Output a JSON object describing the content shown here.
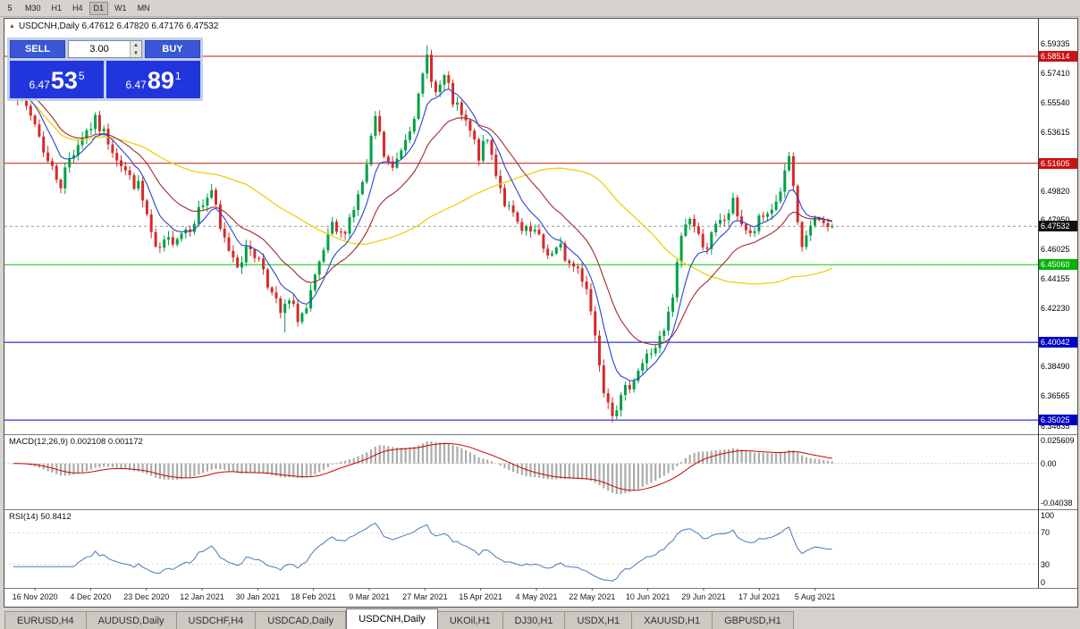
{
  "toolbar": {
    "timeframes": [
      "5",
      "M30",
      "H1",
      "H4",
      "D1",
      "W1",
      "MN"
    ],
    "active_timeframe": "D1"
  },
  "chart": {
    "symbol_line": "USDCNH,Daily 6.47612 6.47820 6.47176 6.47532"
  },
  "trade_panel": {
    "sell_label": "SELL",
    "buy_label": "BUY",
    "volume": "3.00",
    "sell_price": {
      "prefix": "6.47",
      "big": "53",
      "sup": "5"
    },
    "buy_price": {
      "prefix": "6.47",
      "big": "89",
      "sup": "1"
    }
  },
  "price_scale": {
    "plain": [
      "6.59335",
      "6.57410",
      "6.55540",
      "6.53615",
      "6.49820",
      "6.47950",
      "6.46025",
      "6.44155",
      "6.42230",
      "6.38490",
      "6.36565",
      "6.34635"
    ],
    "badges": [
      {
        "value": "6.58514",
        "color": "#cc1111"
      },
      {
        "value": "6.51605",
        "color": "#cc1111"
      },
      {
        "value": "6.47532",
        "color": "#111111"
      },
      {
        "value": "6.45060",
        "color": "#00b400"
      },
      {
        "value": "6.40042",
        "color": "#0000c8"
      },
      {
        "value": "6.35025",
        "color": "#0000c8"
      }
    ]
  },
  "levels": [
    {
      "price": 6.58514,
      "color": "#cc1111",
      "dash": false
    },
    {
      "price": 6.51605,
      "color": "#cc1111",
      "dash": false
    },
    {
      "price": 6.47532,
      "color": "#999999",
      "dash": true
    },
    {
      "price": 6.4506,
      "color": "#00cc00",
      "dash": false
    },
    {
      "price": 6.40042,
      "color": "#0000cc",
      "dash": false
    },
    {
      "price": 6.35025,
      "color": "#0000cc",
      "dash": false
    }
  ],
  "indicators": {
    "macd": {
      "label": "MACD(12,26,9) 0.002108 0.001172",
      "scale": [
        "0.025609",
        "0.00",
        "-0.04038"
      ]
    },
    "rsi": {
      "label": "RSI(14) 50.8412",
      "scale": [
        "100",
        "70",
        "30",
        "0"
      ]
    }
  },
  "dates": [
    "16 Nov 2020",
    "4 Dec 2020",
    "23 Dec 2020",
    "12 Jan 2021",
    "30 Jan 2021",
    "18 Feb 2021",
    "9 Mar 2021",
    "27 Mar 2021",
    "15 Apr 2021",
    "4 May 2021",
    "22 May 2021",
    "10 Jun 2021",
    "29 Jun 2021",
    "17 Jul 2021",
    "5 Aug 2021"
  ],
  "tabs": {
    "items": [
      "EURUSD,H4",
      "AUDUSD,Daily",
      "USDCHF,H4",
      "USDCAD,Daily",
      "USDCNH,Daily",
      "UKOil,H1",
      "DJ30,H1",
      "USDX,H1",
      "XAUUSD,H1",
      "GBPUSD,H1"
    ],
    "active": "USDCNH,Daily"
  },
  "colors": {
    "bull": "#00a046",
    "bear": "#d42a2a",
    "ma_fast": "#2746c9",
    "ma_mid": "#9e2b2b",
    "ma_slow": "#efcf0e",
    "rsi": "#4878b8",
    "macd_signal": "#d00000",
    "macd_hist": "#ababab"
  },
  "chart_data": {
    "type": "candlestick",
    "symbol": "USDCNH",
    "timeframe": "Daily",
    "last_close": 6.47532,
    "keyframes": [
      [
        0,
        6.567
      ],
      [
        2,
        6.556
      ],
      [
        5,
        6.542
      ],
      [
        8,
        6.517
      ],
      [
        11,
        6.503
      ],
      [
        13,
        6.519
      ],
      [
        16,
        6.534
      ],
      [
        19,
        6.543
      ],
      [
        22,
        6.531
      ],
      [
        25,
        6.516
      ],
      [
        27,
        6.506
      ],
      [
        29,
        6.501
      ],
      [
        31,
        6.482
      ],
      [
        33,
        6.458
      ],
      [
        35,
        6.463
      ],
      [
        38,
        6.47
      ],
      [
        41,
        6.476
      ],
      [
        44,
        6.49
      ],
      [
        46,
        6.499
      ],
      [
        48,
        6.472
      ],
      [
        50,
        6.461
      ],
      [
        52,
        6.452
      ],
      [
        55,
        6.462
      ],
      [
        58,
        6.449
      ],
      [
        60,
        6.431
      ],
      [
        62,
        6.419
      ],
      [
        64,
        6.426
      ],
      [
        66,
        6.417
      ],
      [
        68,
        6.421
      ],
      [
        70,
        6.44
      ],
      [
        72,
        6.459
      ],
      [
        74,
        6.474
      ],
      [
        76,
        6.469
      ],
      [
        78,
        6.481
      ],
      [
        80,
        6.494
      ],
      [
        82,
        6.513
      ],
      [
        84,
        6.546
      ],
      [
        86,
        6.521
      ],
      [
        88,
        6.511
      ],
      [
        90,
        6.526
      ],
      [
        92,
        6.541
      ],
      [
        94,
        6.557
      ],
      [
        96,
        6.585
      ],
      [
        98,
        6.561
      ],
      [
        100,
        6.571
      ],
      [
        102,
        6.556
      ],
      [
        104,
        6.546
      ],
      [
        106,
        6.536
      ],
      [
        108,
        6.521
      ],
      [
        110,
        6.531
      ],
      [
        112,
        6.511
      ],
      [
        114,
        6.491
      ],
      [
        116,
        6.481
      ],
      [
        118,
        6.471
      ],
      [
        121,
        6.471
      ],
      [
        123,
        6.461
      ],
      [
        125,
        6.457
      ],
      [
        127,
        6.461
      ],
      [
        129,
        6.451
      ],
      [
        131,
        6.448
      ],
      [
        133,
        6.437
      ],
      [
        135,
        6.405
      ],
      [
        137,
        6.372
      ],
      [
        139,
        6.357
      ],
      [
        141,
        6.363
      ],
      [
        143,
        6.374
      ],
      [
        145,
        6.383
      ],
      [
        147,
        6.391
      ],
      [
        149,
        6.398
      ],
      [
        151,
        6.406
      ],
      [
        153,
        6.429
      ],
      [
        155,
        6.47
      ],
      [
        157,
        6.482
      ],
      [
        159,
        6.468
      ],
      [
        161,
        6.463
      ],
      [
        163,
        6.474
      ],
      [
        165,
        6.48
      ],
      [
        167,
        6.49
      ],
      [
        169,
        6.478
      ],
      [
        171,
        6.468
      ],
      [
        173,
        6.478
      ],
      [
        175,
        6.484
      ],
      [
        177,
        6.491
      ],
      [
        179,
        6.508
      ],
      [
        180,
        6.52
      ],
      [
        181,
        6.497
      ],
      [
        182,
        6.475
      ],
      [
        183,
        6.462
      ],
      [
        184,
        6.47
      ],
      [
        185,
        6.474
      ],
      [
        186,
        6.477
      ],
      [
        187,
        6.479
      ],
      [
        188,
        6.476
      ],
      [
        189,
        6.478
      ],
      [
        190,
        6.4753
      ]
    ],
    "wick_marks": [
      [
        96,
        "high",
        6.5921
      ],
      [
        139,
        "low",
        6.3518
      ],
      [
        180,
        "high",
        6.5235
      ],
      [
        63,
        "low",
        6.4068
      ]
    ]
  }
}
